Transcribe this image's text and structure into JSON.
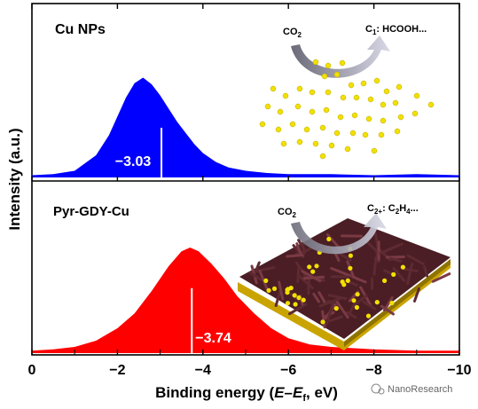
{
  "chart_data": {
    "type": "area",
    "xlabel_prefix": "Binding energy (",
    "xlabel_E": "E",
    "xlabel_dash": "–",
    "xlabel_Ef": "E",
    "xlabel_f": "f",
    "xlabel_suffix": ", eV)",
    "ylabel": "Intensity (a.u.)",
    "xlim": [
      0,
      -10
    ],
    "ticks": [
      0,
      -2,
      -4,
      -6,
      -8,
      -10
    ],
    "tick_labels": [
      "0",
      "−2",
      "−4",
      "−6",
      "−8",
      "−10"
    ],
    "panels": [
      {
        "name": "Cu NPs",
        "color": "#0000ff",
        "center_value": -3.03,
        "center_label": "−3.03",
        "reaction": {
          "co2": "CO",
          "co2_sub": "2",
          "product_prefix": "C",
          "product_sub": "1",
          "product_rest": ": HCOOH..."
        },
        "x": [
          0,
          -0.5,
          -1,
          -1.5,
          -1.8,
          -2.0,
          -2.2,
          -2.4,
          -2.6,
          -2.8,
          -3.0,
          -3.2,
          -3.4,
          -3.6,
          -3.8,
          -4.0,
          -4.3,
          -4.6,
          -5.0,
          -5.5,
          -6,
          -7,
          -8,
          -9,
          -10
        ],
        "y": [
          0.02,
          0.03,
          0.06,
          0.2,
          0.38,
          0.55,
          0.72,
          0.85,
          0.9,
          0.84,
          0.74,
          0.62,
          0.5,
          0.4,
          0.3,
          0.22,
          0.14,
          0.09,
          0.06,
          0.04,
          0.03,
          0.03,
          0.02,
          0.03,
          0.02
        ]
      },
      {
        "name": "Pyr-GDY-Cu",
        "color": "#ff0000",
        "center_value": -3.74,
        "center_label": "−3.74",
        "reaction": {
          "co2": "CO",
          "co2_sub": "2",
          "product_prefix": "C",
          "product_sub": "2+",
          "product_rest": ": C",
          "product_sub2": "2",
          "product_rest2": "H",
          "product_sub3": "4",
          "product_rest3": "..."
        },
        "x": [
          0,
          -0.5,
          -1,
          -1.5,
          -2.0,
          -2.4,
          -2.8,
          -3.2,
          -3.5,
          -3.7,
          -3.9,
          -4.2,
          -4.5,
          -4.8,
          -5.2,
          -5.6,
          -6.0,
          -6.5,
          -7,
          -8,
          -9,
          -10
        ],
        "y": [
          0.02,
          0.03,
          0.05,
          0.1,
          0.2,
          0.32,
          0.5,
          0.7,
          0.82,
          0.85,
          0.82,
          0.72,
          0.6,
          0.46,
          0.32,
          0.2,
          0.12,
          0.07,
          0.05,
          0.03,
          0.02,
          0.02
        ]
      }
    ]
  },
  "watermark": "NanoResearch"
}
